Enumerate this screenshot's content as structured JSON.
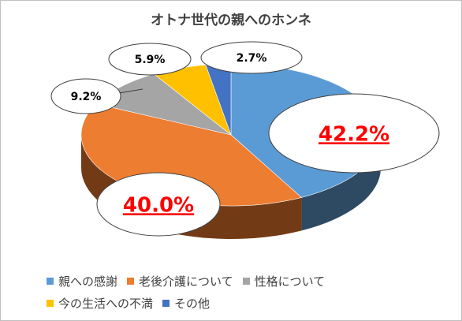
{
  "chart_data": {
    "type": "pie",
    "title": "オトナ世代の親へのホンネ",
    "categories": [
      "親への感謝",
      "老後介護について",
      "性格について",
      "今の生活への不満",
      "その他"
    ],
    "values": [
      42.2,
      40.0,
      9.2,
      5.9,
      2.7
    ],
    "data_labels": [
      "42.2%",
      "40.0%",
      "9.2%",
      "5.9%",
      "2.7%"
    ],
    "colors": [
      "#5b9bd5",
      "#ed7d31",
      "#a5a5a5",
      "#ffc000",
      "#4472c4"
    ],
    "side_colors": [
      "#2e4a63",
      "#733b15",
      "#4f4f4f",
      "#7a5c00",
      "#203864"
    ],
    "label_color_highlight": "#ff0000",
    "label_color_normal": "#000000",
    "legend_position": "bottom",
    "style": "3d-pie-with-callout-bubbles"
  }
}
